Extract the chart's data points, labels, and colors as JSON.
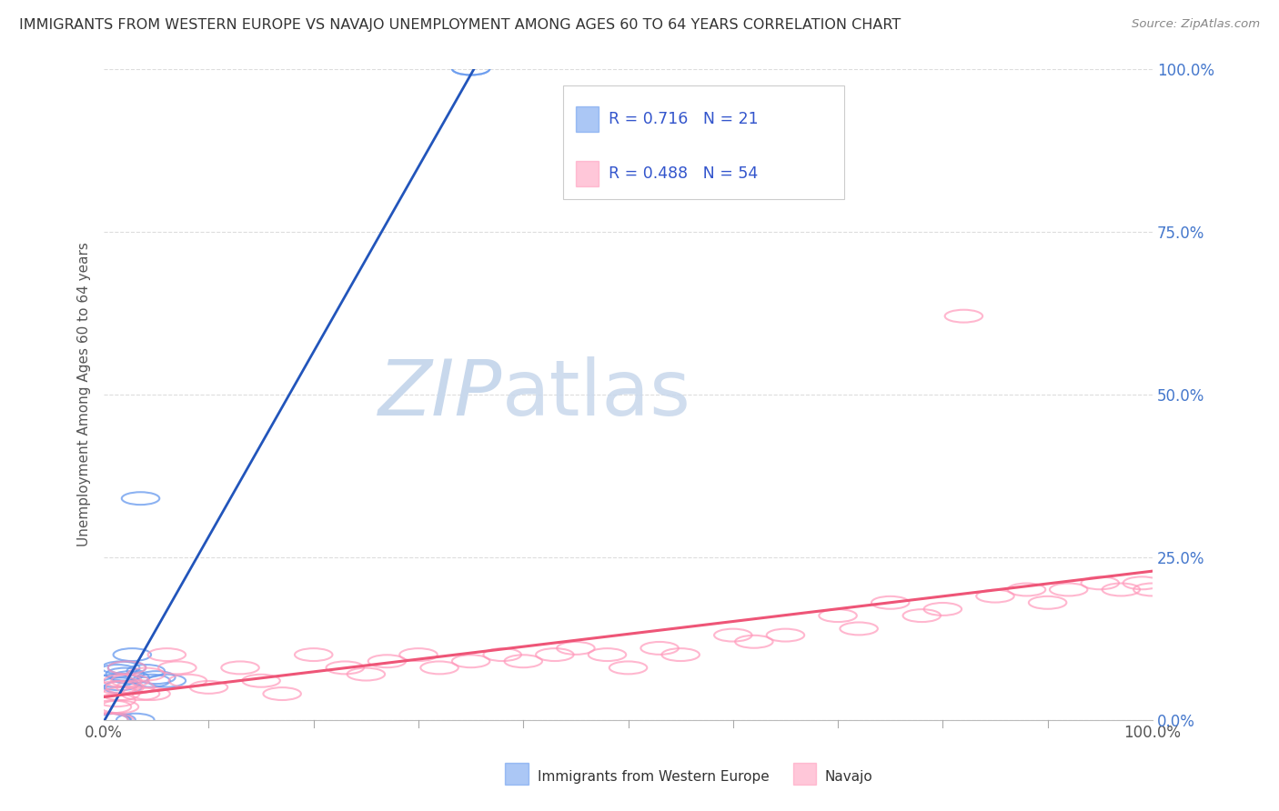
{
  "title": "IMMIGRANTS FROM WESTERN EUROPE VS NAVAJO UNEMPLOYMENT AMONG AGES 60 TO 64 YEARS CORRELATION CHART",
  "source": "Source: ZipAtlas.com",
  "ylabel": "Unemployment Among Ages 60 to 64 years",
  "yticks_labels": [
    "0.0%",
    "25.0%",
    "50.0%",
    "75.0%",
    "100.0%"
  ],
  "ytick_values": [
    0.0,
    0.25,
    0.5,
    0.75,
    1.0
  ],
  "xtick_left": "0.0%",
  "xtick_right": "100.0%",
  "legend_label1": "Immigrants from Western Europe",
  "legend_label2": "Navajo",
  "r1": "0.716",
  "n1": "21",
  "r2": "0.488",
  "n2": "54",
  "blue_scatter_color": "#6699EE",
  "pink_scatter_color": "#FF99BB",
  "blue_line_color": "#2255BB",
  "pink_line_color": "#EE5577",
  "legend_text_color": "#3355CC",
  "ytick_color": "#4477CC",
  "xtick_color": "#555555",
  "grid_color": "#DDDDDD",
  "background_color": "#FFFFFF",
  "title_color": "#333333",
  "axis_label_color": "#555555",
  "blue_x": [
    0.005,
    0.007,
    0.008,
    0.01,
    0.012,
    0.013,
    0.015,
    0.016,
    0.018,
    0.02,
    0.022,
    0.025,
    0.027,
    0.03,
    0.035,
    0.04,
    0.045,
    0.05,
    0.06,
    0.35,
    0.35
  ],
  "blue_y": [
    0.0,
    0.0,
    0.0,
    0.06,
    0.0,
    0.075,
    0.055,
    0.08,
    0.05,
    0.07,
    0.08,
    0.065,
    0.1,
    0.0,
    0.34,
    0.075,
    0.06,
    0.065,
    0.06,
    1.0,
    1.0
  ],
  "pink_x": [
    0.005,
    0.008,
    0.01,
    0.012,
    0.013,
    0.015,
    0.016,
    0.018,
    0.02,
    0.022,
    0.025,
    0.03,
    0.035,
    0.04,
    0.045,
    0.06,
    0.07,
    0.08,
    0.1,
    0.13,
    0.15,
    0.17,
    0.2,
    0.23,
    0.25,
    0.27,
    0.3,
    0.32,
    0.35,
    0.38,
    0.4,
    0.43,
    0.45,
    0.48,
    0.5,
    0.53,
    0.55,
    0.6,
    0.62,
    0.65,
    0.7,
    0.72,
    0.75,
    0.78,
    0.8,
    0.82,
    0.85,
    0.88,
    0.9,
    0.92,
    0.95,
    0.97,
    0.99,
    1.0
  ],
  "pink_y": [
    0.0,
    0.02,
    0.0,
    0.03,
    0.05,
    0.02,
    0.04,
    0.06,
    0.05,
    0.08,
    0.06,
    0.05,
    0.04,
    0.07,
    0.04,
    0.1,
    0.08,
    0.06,
    0.05,
    0.08,
    0.06,
    0.04,
    0.1,
    0.08,
    0.07,
    0.09,
    0.1,
    0.08,
    0.09,
    0.1,
    0.09,
    0.1,
    0.11,
    0.1,
    0.08,
    0.11,
    0.1,
    0.13,
    0.12,
    0.13,
    0.16,
    0.14,
    0.18,
    0.16,
    0.17,
    0.62,
    0.19,
    0.2,
    0.18,
    0.2,
    0.21,
    0.2,
    0.21,
    0.2
  ],
  "xlim": [
    0.0,
    1.0
  ],
  "ylim": [
    0.0,
    1.0
  ]
}
